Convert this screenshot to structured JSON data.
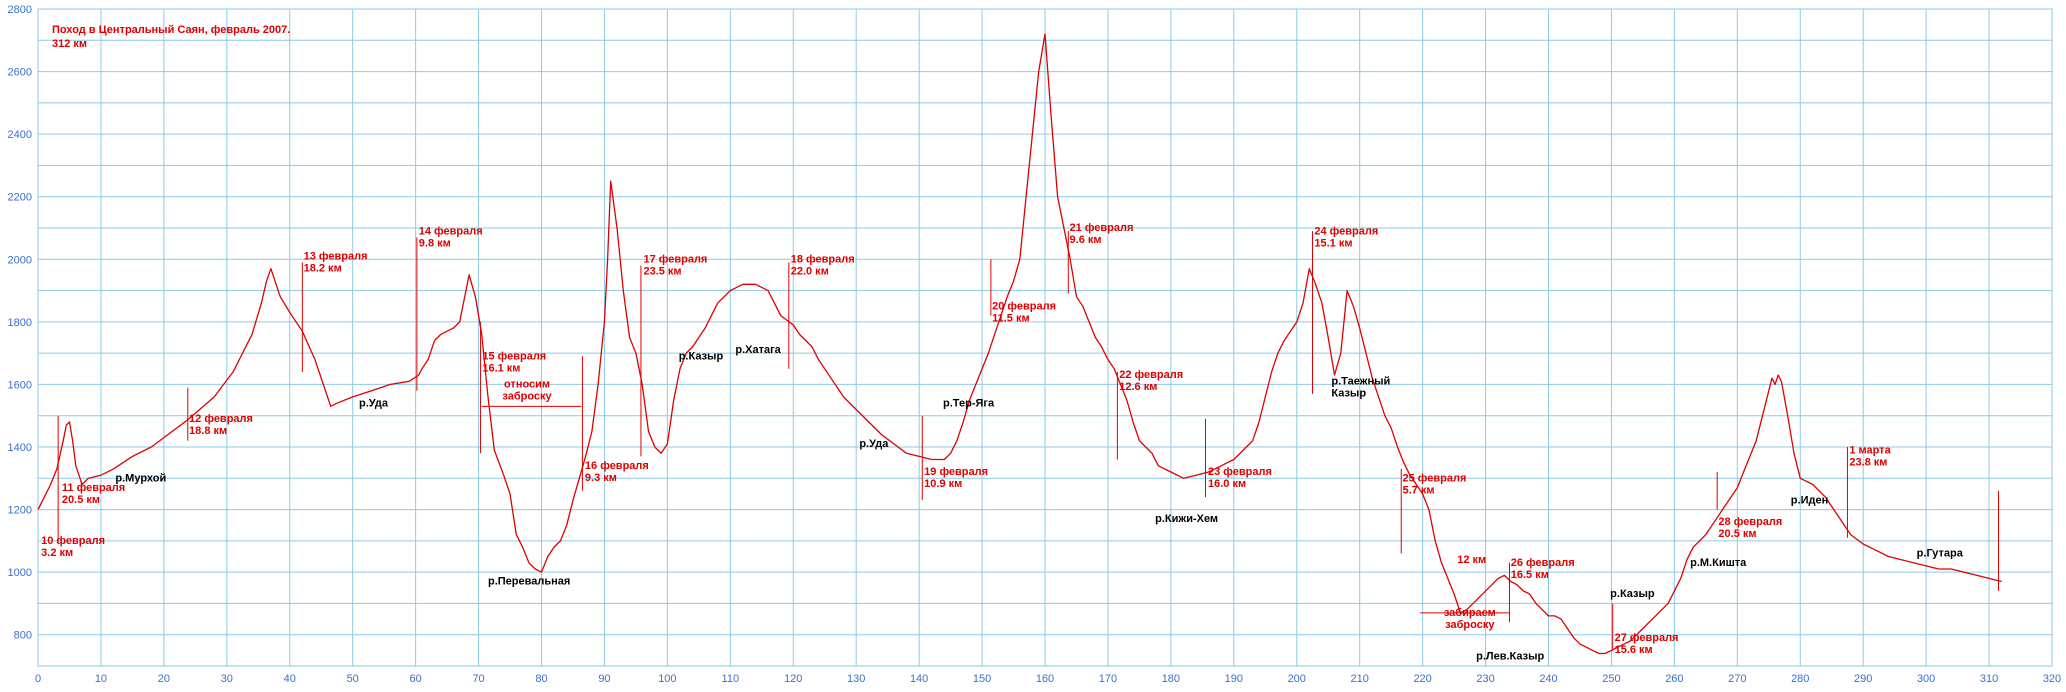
{
  "chart_data": {
    "type": "line",
    "title": "Поход в Центральный Саян, февраль 2007.",
    "subtitle": "312 км",
    "xlim": [
      0,
      320
    ],
    "ylim": [
      700,
      2800
    ],
    "x_ticks": [
      0,
      10,
      20,
      30,
      40,
      50,
      60,
      70,
      80,
      90,
      100,
      110,
      120,
      130,
      140,
      150,
      160,
      170,
      180,
      190,
      200,
      210,
      220,
      230,
      240,
      250,
      260,
      270,
      280,
      290,
      300,
      310,
      320
    ],
    "y_ticks": [
      800,
      1000,
      1200,
      1400,
      1600,
      1800,
      2000,
      2200,
      2400,
      2600,
      2800
    ],
    "grid": true,
    "colors": {
      "grid": "#8ecbe6",
      "line": "#e00000",
      "tick_text": "#3a6fd0",
      "label_black": "#000000"
    },
    "series": [
      {
        "x": [
          0,
          1,
          2,
          3,
          4,
          4.5,
          5,
          5.5,
          6,
          7,
          8,
          10,
          12,
          15,
          18,
          20,
          24,
          28,
          31,
          34,
          35.5,
          36.3,
          37,
          38.5,
          40,
          42,
          44,
          45.5,
          46.5,
          47.5,
          50,
          53,
          56,
          59,
          60.5,
          61,
          62,
          63,
          64,
          65,
          66,
          67,
          67.8,
          68.5,
          69.5,
          70.5,
          71.5,
          72.5,
          74,
          75,
          76,
          77,
          78,
          79,
          80,
          81,
          82,
          83,
          84,
          85,
          86,
          87,
          88,
          89,
          90,
          90.5,
          91,
          92,
          93,
          94,
          95,
          96,
          97,
          98,
          99,
          100,
          101,
          102,
          103,
          104,
          105,
          106,
          108,
          110,
          112,
          114,
          116,
          118,
          120,
          121,
          122,
          123,
          124,
          126,
          128,
          130,
          132,
          134,
          136,
          138,
          140,
          142,
          143,
          144,
          145,
          146,
          147,
          148,
          150,
          151,
          152,
          153,
          154,
          155,
          156,
          157,
          158,
          159,
          160,
          161,
          162,
          163,
          164,
          165,
          166,
          167,
          168,
          169,
          170,
          171,
          172,
          173,
          174,
          175,
          176,
          177,
          178,
          180,
          182,
          184,
          186,
          187,
          188,
          189,
          190,
          191,
          192,
          193,
          194,
          195,
          196,
          197,
          198,
          199,
          200,
          201,
          202,
          203,
          204,
          205,
          206,
          207,
          208,
          209,
          210,
          211,
          212,
          213,
          214,
          215,
          216,
          217,
          218,
          219,
          220,
          221,
          222,
          223,
          224,
          225,
          226,
          227,
          228,
          229,
          230,
          231,
          232,
          233,
          234,
          235,
          236,
          237,
          238,
          239,
          240,
          241,
          242,
          243,
          244,
          245,
          246,
          247,
          248,
          249,
          250,
          251,
          252,
          253,
          254,
          255,
          256,
          257,
          258,
          259,
          260,
          261,
          262,
          263,
          264,
          265,
          266,
          267,
          268,
          269,
          270,
          271,
          272,
          273,
          274,
          275,
          275.5,
          276,
          276.5,
          277,
          278,
          279,
          280,
          282,
          284,
          286,
          288,
          290,
          292,
          294,
          296,
          298,
          300,
          302,
          304,
          306,
          308,
          310,
          311,
          312
        ],
        "y": [
          1200,
          1240,
          1280,
          1330,
          1420,
          1470,
          1480,
          1420,
          1340,
          1280,
          1300,
          1310,
          1330,
          1370,
          1400,
          1430,
          1490,
          1560,
          1640,
          1760,
          1860,
          1930,
          1970,
          1880,
          1830,
          1770,
          1680,
          1590,
          1530,
          1540,
          1560,
          1580,
          1600,
          1610,
          1630,
          1650,
          1680,
          1740,
          1760,
          1770,
          1780,
          1800,
          1880,
          1950,
          1880,
          1760,
          1560,
          1390,
          1310,
          1250,
          1120,
          1080,
          1030,
          1010,
          1000,
          1050,
          1080,
          1100,
          1150,
          1230,
          1300,
          1370,
          1450,
          1600,
          1800,
          2000,
          2250,
          2100,
          1900,
          1750,
          1700,
          1600,
          1450,
          1400,
          1380,
          1410,
          1550,
          1650,
          1700,
          1720,
          1750,
          1780,
          1860,
          1900,
          1920,
          1920,
          1900,
          1820,
          1790,
          1760,
          1740,
          1720,
          1680,
          1620,
          1560,
          1520,
          1480,
          1440,
          1410,
          1380,
          1370,
          1360,
          1360,
          1360,
          1380,
          1420,
          1480,
          1550,
          1650,
          1700,
          1760,
          1820,
          1880,
          1930,
          2000,
          2200,
          2400,
          2600,
          2720,
          2450,
          2200,
          2100,
          2000,
          1880,
          1850,
          1800,
          1750,
          1720,
          1680,
          1650,
          1600,
          1550,
          1480,
          1420,
          1400,
          1380,
          1340,
          1320,
          1300,
          1310,
          1320,
          1330,
          1340,
          1350,
          1360,
          1380,
          1400,
          1420,
          1480,
          1560,
          1640,
          1700,
          1740,
          1770,
          1800,
          1860,
          1970,
          1920,
          1860,
          1750,
          1630,
          1700,
          1900,
          1850,
          1780,
          1700,
          1620,
          1560,
          1500,
          1460,
          1400,
          1350,
          1310,
          1280,
          1250,
          1200,
          1100,
          1030,
          980,
          930,
          870,
          880,
          900,
          920,
          940,
          960,
          980,
          990,
          970,
          960,
          940,
          930,
          900,
          880,
          860,
          860,
          850,
          820,
          790,
          770,
          760,
          750,
          740,
          740,
          750,
          760,
          770,
          780,
          800,
          820,
          840,
          860,
          880,
          900,
          940,
          980,
          1040,
          1080,
          1100,
          1120,
          1150,
          1180,
          1210,
          1240,
          1270,
          1320,
          1370,
          1420,
          1500,
          1580,
          1620,
          1600,
          1630,
          1610,
          1500,
          1380,
          1300,
          1280,
          1240,
          1180,
          1120,
          1090,
          1070,
          1050,
          1040,
          1030,
          1020,
          1010,
          1010,
          1000,
          990,
          980,
          975,
          970
        ]
      }
    ],
    "day_markers": [
      {
        "x": 3.2,
        "y1": 1100,
        "y2": 1500
      },
      {
        "x": 23.8,
        "y1": 1420,
        "y2": 1590
      },
      {
        "x": 42.0,
        "y1": 1640,
        "y2": 1990
      },
      {
        "x": 60.2,
        "y1": 1580,
        "y2": 2070
      },
      {
        "x": 70.3,
        "y1": 1380,
        "y2": 1800
      },
      {
        "x": 86.5,
        "y1": 1260,
        "y2": 1690
      },
      {
        "x": 95.8,
        "y1": 1370,
        "y2": 1980
      },
      {
        "x": 119.3,
        "y1": 1650,
        "y2": 1990
      },
      {
        "x": 140.5,
        "y1": 1230,
        "y2": 1500
      },
      {
        "x": 151.4,
        "y1": 1820,
        "y2": 2000
      },
      {
        "x": 163.7,
        "y1": 1890,
        "y2": 2090
      },
      {
        "x": 171.5,
        "y1": 1360,
        "y2": 1640
      },
      {
        "x": 185.5,
        "y1": 1240,
        "y2": 1490
      },
      {
        "x": 202.5,
        "y1": 1570,
        "y2": 2090
      },
      {
        "x": 216.6,
        "y1": 1060,
        "y2": 1330
      },
      {
        "x": 233.8,
        "y1": 840,
        "y2": 1030
      },
      {
        "x": 250.2,
        "y1": 750,
        "y2": 900
      },
      {
        "x": 266.8,
        "y1": 1200,
        "y2": 1320
      },
      {
        "x": 287.5,
        "y1": 1110,
        "y2": 1400
      },
      {
        "x": 311.5,
        "y1": 940,
        "y2": 1260
      }
    ],
    "hlines": [
      {
        "x1": 70.5,
        "x2": 86.3,
        "y": 1530
      },
      {
        "x1": 219.6,
        "x2": 233.8,
        "y": 870
      }
    ],
    "red_labels": [
      {
        "x": 0.5,
        "y": 1090,
        "lines": [
          "10 февраля",
          "3.2 км"
        ]
      },
      {
        "x": 3.8,
        "y": 1260,
        "lines": [
          "11 февраля",
          "20.5 км"
        ]
      },
      {
        "x": 24.0,
        "y": 1480,
        "lines": [
          "12 февраля",
          "18.8 км"
        ]
      },
      {
        "x": 42.2,
        "y": 2000,
        "lines": [
          "13 февраля",
          "18.2 км"
        ]
      },
      {
        "x": 60.5,
        "y": 2080,
        "lines": [
          "14 февраля",
          "9.8 км"
        ]
      },
      {
        "x": 70.6,
        "y": 1680,
        "lines": [
          "15 февраля",
          "16.1 км"
        ]
      },
      {
        "x": 86.9,
        "y": 1330,
        "lines": [
          "16 февраля",
          "9.3 км"
        ]
      },
      {
        "x": 96.2,
        "y": 1990,
        "lines": [
          "17 февраля",
          "23.5 км"
        ]
      },
      {
        "x": 119.6,
        "y": 1990,
        "lines": [
          "18 февраля",
          "22.0 км"
        ]
      },
      {
        "x": 140.8,
        "y": 1310,
        "lines": [
          "19 февраля",
          "10.9 км"
        ]
      },
      {
        "x": 151.6,
        "y": 1840,
        "lines": [
          "20 февраля",
          "11.5 км"
        ]
      },
      {
        "x": 163.9,
        "y": 2090,
        "lines": [
          "21 февраля",
          "9.6 км"
        ]
      },
      {
        "x": 171.8,
        "y": 1620,
        "lines": [
          "22 февраля",
          "12.6 км"
        ]
      },
      {
        "x": 185.9,
        "y": 1310,
        "lines": [
          "23 февраля",
          "16.0 км"
        ]
      },
      {
        "x": 202.8,
        "y": 2080,
        "lines": [
          "24 февраля",
          "15.1 км"
        ]
      },
      {
        "x": 216.8,
        "y": 1290,
        "lines": [
          "25 февраля",
          "5.7 км"
        ]
      },
      {
        "x": 234.0,
        "y": 1020,
        "lines": [
          "26 февраля",
          "16.5 км"
        ]
      },
      {
        "x": 250.5,
        "y": 780,
        "lines": [
          "27 февраля",
          "15.6 км"
        ]
      },
      {
        "x": 267.0,
        "y": 1150,
        "lines": [
          "28 февраля",
          "20.5 км"
        ]
      },
      {
        "x": 287.8,
        "y": 1380,
        "lines": [
          "1 марта",
          "23.8 км"
        ]
      },
      {
        "x": 225.5,
        "y": 1030,
        "lines": [
          "12 км"
        ]
      }
    ],
    "red_center_labels": [
      {
        "x": 77.7,
        "y": 1590,
        "lines": [
          "относим",
          "заброску"
        ]
      },
      {
        "x": 227.5,
        "y": 860,
        "lines": [
          "забираем",
          "заброску"
        ]
      }
    ],
    "black_labels": [
      {
        "x": 12.3,
        "y": 1290,
        "lines": [
          "р.Мурхой"
        ]
      },
      {
        "x": 51.0,
        "y": 1530,
        "lines": [
          "р.Уда"
        ]
      },
      {
        "x": 71.5,
        "y": 960,
        "lines": [
          "р.Перевальная"
        ]
      },
      {
        "x": 101.8,
        "y": 1680,
        "lines": [
          "р.Казыр"
        ]
      },
      {
        "x": 110.8,
        "y": 1700,
        "lines": [
          "р.Хатага"
        ]
      },
      {
        "x": 130.5,
        "y": 1400,
        "lines": [
          "р.Уда"
        ]
      },
      {
        "x": 143.8,
        "y": 1530,
        "lines": [
          "р.Тер-Яга"
        ]
      },
      {
        "x": 177.5,
        "y": 1160,
        "lines": [
          "р.Кижи-Хем"
        ]
      },
      {
        "x": 205.5,
        "y": 1600,
        "lines": [
          "р.Таежный",
          "Казыр"
        ]
      },
      {
        "x": 228.5,
        "y": 720,
        "lines": [
          "р.Лев.Казыр"
        ]
      },
      {
        "x": 249.8,
        "y": 920,
        "lines": [
          "р.Казыр"
        ]
      },
      {
        "x": 262.5,
        "y": 1020,
        "lines": [
          "р.М.Кишта"
        ]
      },
      {
        "x": 278.5,
        "y": 1220,
        "lines": [
          "р.Иден"
        ]
      },
      {
        "x": 298.5,
        "y": 1050,
        "lines": [
          "р.Гутара"
        ]
      }
    ]
  }
}
